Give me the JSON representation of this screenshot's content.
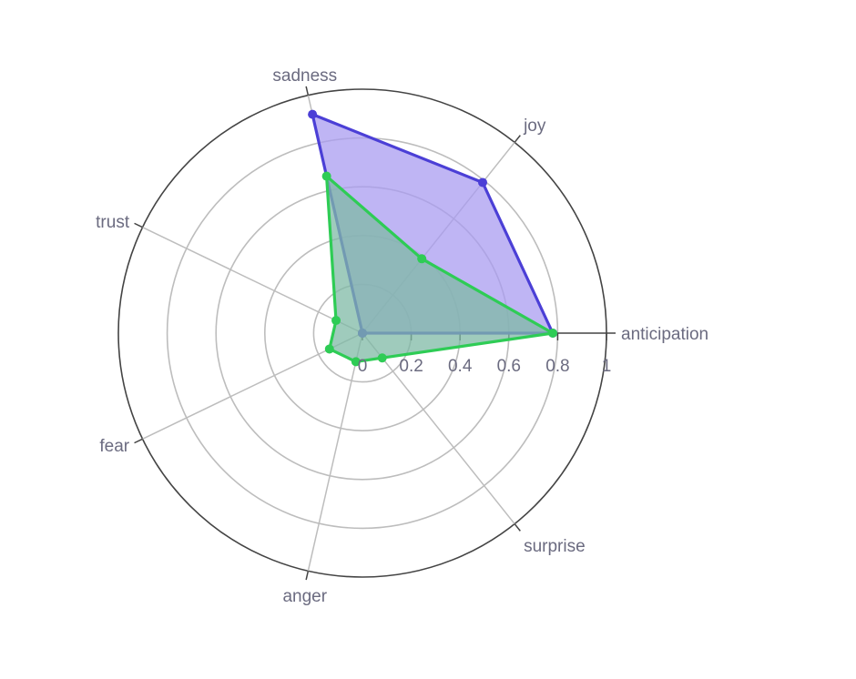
{
  "chart_data": {
    "type": "radar",
    "axes": [
      "anticipation",
      "joy",
      "sadness",
      "trust",
      "fear",
      "anger",
      "surprise"
    ],
    "radial_ticks": [
      "0",
      "0.2",
      "0.4",
      "0.6",
      "0.8",
      "1"
    ],
    "radial_range": [
      0,
      1
    ],
    "grid": true,
    "legend": "none",
    "series": [
      {
        "color": "#4b3fd6",
        "fill": "#a99cf0",
        "values": [
          0.78,
          0.79,
          0.92,
          0.0,
          0.0,
          0.0,
          0.0
        ]
      },
      {
        "color": "#2ecc55",
        "fill": "#7fb9a6",
        "values": [
          0.78,
          0.39,
          0.66,
          0.12,
          0.15,
          0.12,
          0.13
        ]
      }
    ]
  }
}
